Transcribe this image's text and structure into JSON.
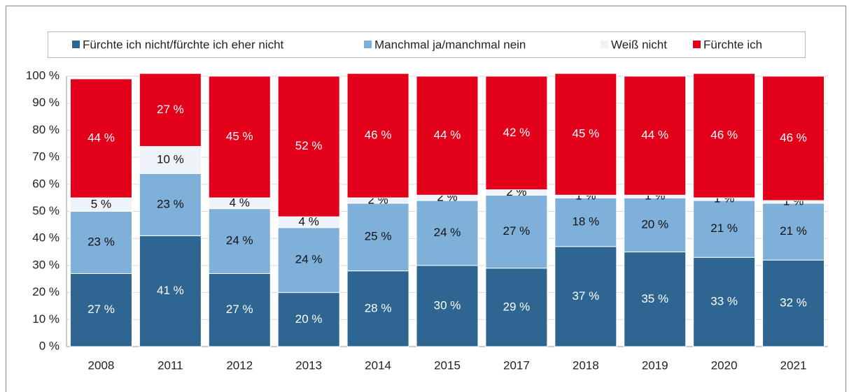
{
  "chart_data": {
    "type": "stacked_bar",
    "categories": [
      "2008",
      "2011",
      "2012",
      "2013",
      "2014",
      "2015",
      "2017",
      "2018",
      "2019",
      "2020",
      "2021"
    ],
    "series": [
      {
        "name": "Fürchte ich nicht/fürchte ich eher nicht",
        "color": "#2e6591",
        "values": [
          27,
          41,
          27,
          20,
          28,
          30,
          29,
          37,
          35,
          33,
          32
        ],
        "value_labels": [
          "27 %",
          "41 %",
          "27 %",
          "20 %",
          "28 %",
          "30 %",
          "29 %",
          "37 %",
          "35 %",
          "33 %",
          "32 %"
        ]
      },
      {
        "name": "Manchmal ja/manchmal nein",
        "color": "#7fb0d9",
        "values": [
          23,
          23,
          24,
          24,
          25,
          24,
          27,
          18,
          20,
          21,
          21
        ],
        "value_labels": [
          "23 %",
          "23 %",
          "24 %",
          "24 %",
          "25 %",
          "24 %",
          "27 %",
          "18 %",
          "20 %",
          "21 %",
          "21 %"
        ]
      },
      {
        "name": "Weiß nicht",
        "color": "#eef3fa",
        "values": [
          5,
          10,
          4,
          4,
          2,
          2,
          2,
          1,
          1,
          1,
          1
        ],
        "value_labels": [
          "5 %",
          "10 %",
          "4 %",
          "4 %",
          "2 %",
          "2 %",
          "2 %",
          "1 %",
          "1 %",
          "1 %",
          "1 %"
        ]
      },
      {
        "name": "Fürchte ich",
        "color": "#e2001a",
        "values": [
          44,
          27,
          45,
          52,
          46,
          44,
          42,
          45,
          44,
          46,
          46
        ],
        "value_labels": [
          "44 %",
          "27 %",
          "45 %",
          "52 %",
          "46 %",
          "44 %",
          "42 %",
          "45 %",
          "44 %",
          "46 %",
          "46 %"
        ]
      }
    ],
    "ylim": [
      0,
      100
    ],
    "yticks": [
      {
        "value": 0,
        "label": "0 %"
      },
      {
        "value": 10,
        "label": "10 %"
      },
      {
        "value": 20,
        "label": "20 %"
      },
      {
        "value": 30,
        "label": "30 %"
      },
      {
        "value": 40,
        "label": "40 %"
      },
      {
        "value": 50,
        "label": "50 %"
      },
      {
        "value": 60,
        "label": "60 %"
      },
      {
        "value": 70,
        "label": "70 %"
      },
      {
        "value": 80,
        "label": "80 %"
      },
      {
        "value": 90,
        "label": "90 %"
      },
      {
        "value": 100,
        "label": "100 %"
      }
    ],
    "grid": true,
    "legend": "top"
  }
}
